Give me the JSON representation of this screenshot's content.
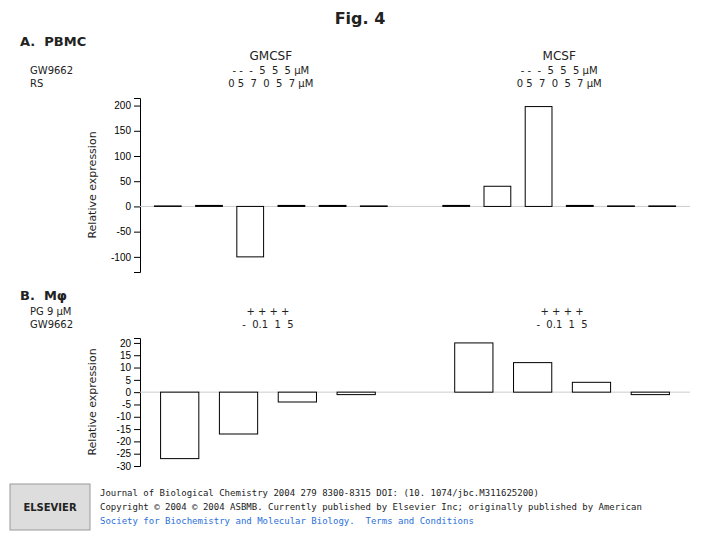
{
  "title": "Fig. 4",
  "annotations": [
    "Journal of Biological Chemistry 2004 279 8300-8315 DOI: (10. 1074/jbc.M311625200)",
    "Copyright © 2004 © 2004 ASBMB. Currently published by Elsevier Inc; originally published by American",
    "Society for Biochemistry and Molecular Biology.  Terms and Conditions",
    "ELSEVIER"
  ],
  "chart_data": [
    {
      "type": "bar",
      "title": "A.  PBMC",
      "ylabel": "Relative expression",
      "categories": [
        null,
        null,
        null,
        null,
        null,
        null,
        null,
        null,
        null,
        null,
        null,
        null
      ],
      "values": [
        1,
        2,
        -100,
        2,
        2,
        1,
        2,
        40,
        198,
        2,
        1,
        1
      ],
      "colors": [
        "white",
        "white",
        "white",
        "black",
        "black",
        "black",
        "white",
        "white",
        "white",
        "black",
        "black",
        "black"
      ],
      "ylim": [
        -130,
        215
      ],
      "yticks": [
        -100,
        -50,
        0,
        50,
        100,
        150,
        200
      ],
      "annotations": [
        "GMCSF",
        "MCSF",
        "GW9662",
        "RS",
        "- -  -  5  5  5 μM",
        "0 5  7  0  5  7 μM",
        "- -  -  5  5  5 μM",
        "0 5  7  0  5  7 μM"
      ]
    },
    {
      "type": "bar",
      "title": "B.  Mφ",
      "ylabel": "Relative expression",
      "categories": [
        null,
        null,
        null,
        null,
        null,
        null,
        null,
        null
      ],
      "values": [
        -27,
        -17,
        -4,
        -1,
        20,
        12,
        4,
        -1
      ],
      "colors": [
        "white",
        "white",
        "white",
        "white",
        "white",
        "white",
        "white",
        "white"
      ],
      "ylim": [
        -30,
        22
      ],
      "yticks": [
        -30,
        -25,
        -20,
        -15,
        -10,
        -5,
        0,
        5,
        10,
        15,
        20
      ],
      "annotations": [
        "PG 9 μM",
        "GW9662",
        "+ + + +",
        "-  0.1  1  5",
        "+ + + +",
        "-  0.1  1  5"
      ]
    }
  ]
}
